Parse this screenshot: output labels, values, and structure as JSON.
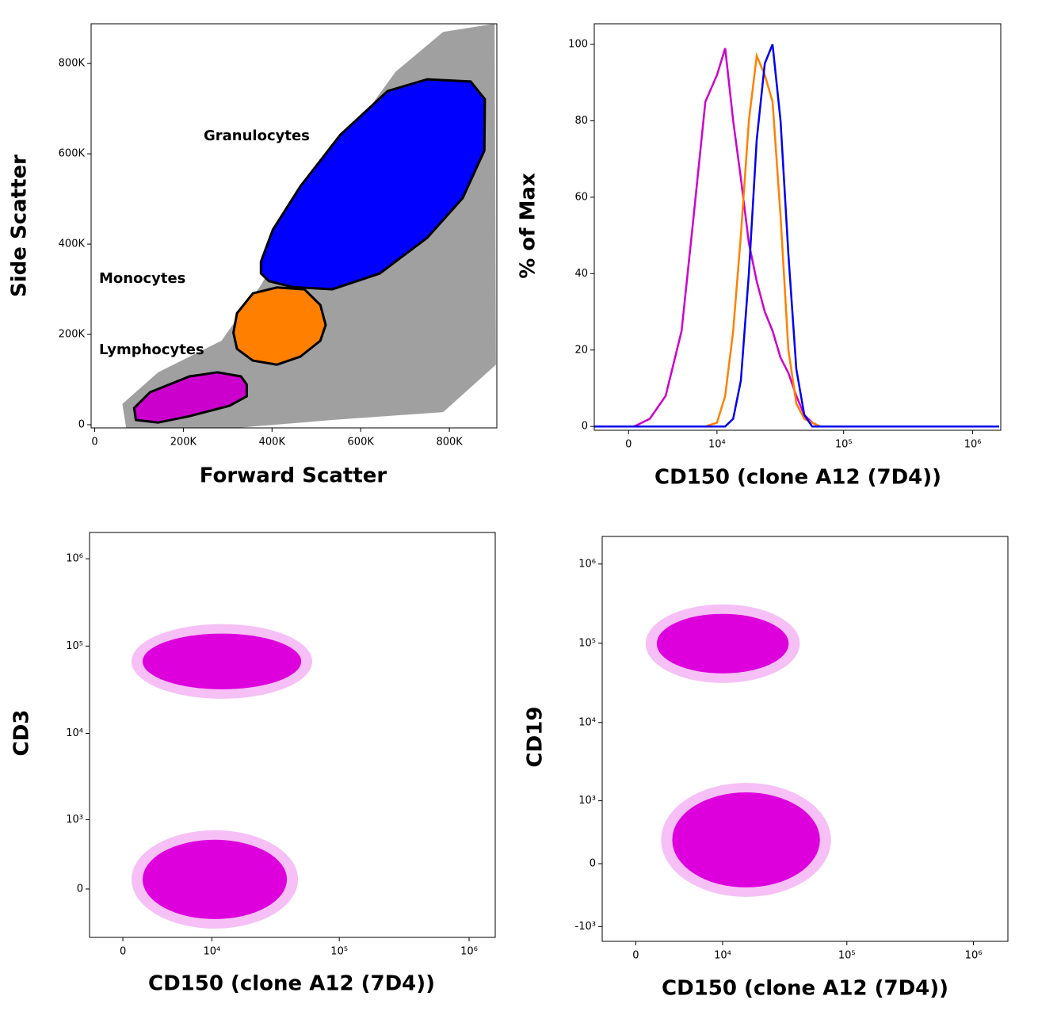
{
  "chart_data": [
    {
      "type": "scatter",
      "x_label": "Forward Scatter",
      "y_label": "Side Scatter",
      "xlim": [
        -8000,
        907000
      ],
      "ylim": [
        -7000,
        888000
      ],
      "xticks": [
        0,
        {
          "value": 200000,
          "label": "200K"
        },
        {
          "value": 400000,
          "label": "400K"
        },
        {
          "value": 600000,
          "label": "600K"
        },
        {
          "value": 800000,
          "label": "800K"
        }
      ],
      "yticks": [
        0,
        {
          "value": 200000,
          "label": "200K"
        },
        {
          "value": 400000,
          "label": "400K"
        },
        {
          "value": 600000,
          "label": "600K"
        },
        {
          "value": 800000,
          "label": "800K"
        }
      ],
      "background": {
        "color": "#808080",
        "x": [
          71000,
          62500,
          143000,
          286000,
          375000,
          536000,
          679000,
          786000,
          902000,
          905000,
          786000,
          536000,
          321000
        ],
        "y": [
          -7000,
          46000,
          116000,
          186000,
          309000,
          589000,
          782000,
          870000,
          888000,
          133000,
          28000,
          10500,
          -7000
        ]
      },
      "gates": [
        {
          "label": "Granulocytes",
          "color": "#0000ff",
          "x": [
            375000,
            402000,
            464000,
            554000,
            661000,
            750000,
            848000,
            880000,
            879000,
            830000,
            750000,
            643000,
            536000,
            446000,
            393000,
            375000
          ],
          "y": [
            361000,
            432000,
            528000,
            642000,
            739000,
            765000,
            760000,
            721000,
            607000,
            502000,
            414000,
            335000,
            300000,
            305000,
            318000,
            335000
          ]
        },
        {
          "label": "Monocytes",
          "color": "#ff8000",
          "x": [
            313000,
            321000,
            357000,
            411000,
            473000,
            509000,
            521000,
            509000,
            464000,
            411000,
            357000,
            321000
          ],
          "y": [
            204000,
            247000,
            291000,
            304000,
            300000,
            265000,
            221000,
            186000,
            151000,
            133000,
            142000,
            168000
          ]
        },
        {
          "label": "Lymphocytes",
          "color": "#cc00cc",
          "x": [
            93000,
            89000,
            125000,
            214000,
            277000,
            330000,
            343000,
            343000,
            304000,
            214000,
            143000
          ],
          "y": [
            10500,
            37000,
            72000,
            107000,
            116000,
            107000,
            89000,
            63000,
            42000,
            19000,
            5000
          ]
        }
      ]
    },
    {
      "type": "line",
      "x_label": "CD150 (clone A12 (7D4))",
      "y_label": "% of Max",
      "xscale": "asinh",
      "xlim": [
        -2800,
        1650000
      ],
      "ylim": [
        -1,
        105.4
      ],
      "xticks": [
        0,
        {
          "value": 10000,
          "label": "10⁴"
        },
        {
          "value": 100000,
          "label": "10⁵"
        },
        {
          "value": 1000000,
          "label": "10⁶"
        }
      ],
      "yticks": [
        0,
        20,
        40,
        60,
        80,
        100
      ],
      "x": [
        -2800,
        430,
        1680,
        3070,
        4720,
        6210,
        7940,
        10000,
        11700,
        13600,
        15700,
        18200,
        21000,
        24300,
        28000,
        32300,
        37200,
        42900,
        49500,
        57000,
        65700,
        75600,
        93500,
        165000,
        1600000
      ],
      "series": [
        {
          "color": "#cc00cc",
          "values": [
            0,
            0,
            2,
            8,
            25,
            55,
            85,
            92,
            99,
            80,
            65,
            48,
            38,
            30,
            25,
            18,
            14,
            8,
            3,
            1,
            0,
            0,
            0,
            0,
            0
          ]
        },
        {
          "color": "#ff8000",
          "values": [
            0,
            0,
            0,
            0,
            0,
            0,
            0,
            1,
            8,
            25,
            50,
            80,
            97,
            92,
            85,
            55,
            20,
            6,
            2,
            1,
            0,
            0,
            0,
            0,
            0
          ]
        },
        {
          "color": "#0000ee",
          "values": [
            0,
            0,
            0,
            0,
            0,
            0,
            0,
            0,
            0,
            2,
            12,
            40,
            75,
            95,
            100,
            80,
            45,
            15,
            3,
            0,
            0,
            0,
            0,
            0,
            0
          ]
        }
      ]
    },
    {
      "type": "scatter",
      "x_label": "CD150 (clone A12 (7D4))",
      "y_label": "CD3",
      "xscale": "asinh",
      "yscale": "asinh",
      "xlim": [
        -2700,
        1590000
      ],
      "ylim": [
        -545,
        2000000
      ],
      "xticks": [
        0,
        {
          "value": 10000,
          "label": "10⁴"
        },
        {
          "value": 100000,
          "label": "10⁵"
        },
        {
          "value": 1000000,
          "label": "10⁶"
        }
      ],
      "yticks": [
        0,
        {
          "value": 1000,
          "label": "10³"
        },
        {
          "value": 10000,
          "label": "10⁴"
        },
        {
          "value": 100000,
          "label": "10⁵"
        },
        {
          "value": 1000000,
          "label": "10⁶"
        }
      ],
      "color": "#dd00dd",
      "clusters": [
        {
          "x_range": [
            1540,
            50800
          ],
          "y_range": [
            32000,
            139000
          ]
        },
        {
          "x_range": [
            1540,
            39400
          ],
          "y_range": [
            -290,
            560
          ]
        }
      ]
    },
    {
      "type": "scatter",
      "x_label": "CD150 (clone A12 (7D4))",
      "y_label": "CD19",
      "xscale": "asinh",
      "yscale": "asinh",
      "xlim": [
        -2800,
        1870000
      ],
      "ylim": [
        -1560,
        2230000
      ],
      "xticks": [
        0,
        {
          "value": 10000,
          "label": "10⁴"
        },
        {
          "value": 100000,
          "label": "10⁵"
        },
        {
          "value": 1000000,
          "label": "10⁶"
        }
      ],
      "yticks": [
        {
          "value": -1000,
          "label": "-10³"
        },
        0,
        {
          "value": 1000,
          "label": "10³"
        },
        {
          "value": 10000,
          "label": "10⁴"
        },
        {
          "value": 100000,
          "label": "10⁵"
        },
        {
          "value": 1000000,
          "label": "10⁶"
        }
      ],
      "color": "#dd00dd",
      "clusters": [
        {
          "x_range": [
            1680,
            34600
          ],
          "y_range": [
            41600,
            235000
          ]
        },
        {
          "x_range": [
            3070,
            61200
          ],
          "y_range": [
            -246,
            1290
          ]
        }
      ]
    }
  ]
}
